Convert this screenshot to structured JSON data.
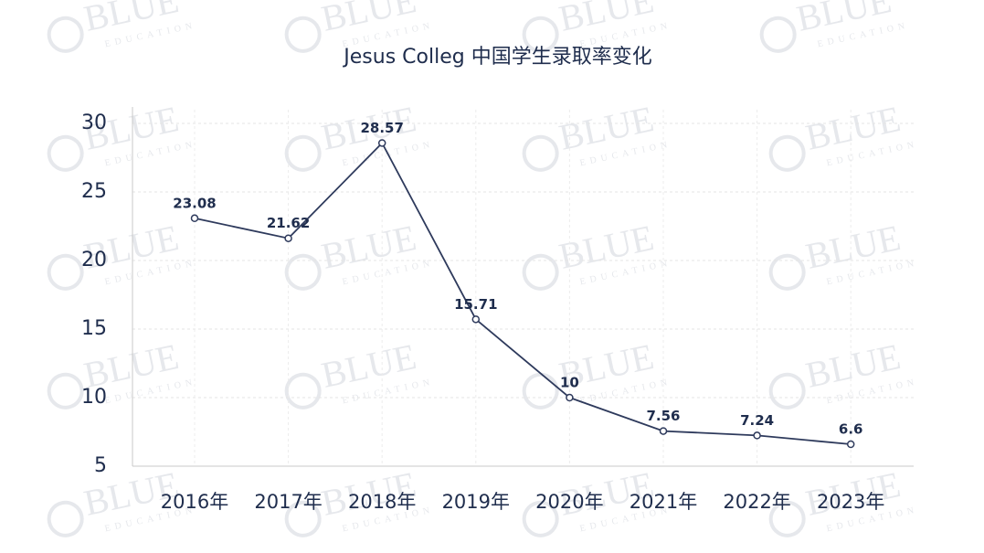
{
  "chart_data": {
    "type": "line",
    "title": "Jesus Colleg 中国学生录取率变化",
    "categories": [
      "2016年",
      "2017年",
      "2018年",
      "2019年",
      "2020年",
      "2021年",
      "2022年",
      "2023年"
    ],
    "values": [
      23.08,
      21.62,
      28.57,
      15.71,
      10,
      7.56,
      7.24,
      6.6
    ],
    "color": "#2e3a5c",
    "ylim": [
      5,
      30
    ],
    "yticks": [
      5,
      10,
      15,
      20,
      25,
      30
    ],
    "grid": true
  },
  "watermark": {
    "text": "BLUE",
    "subtext": "EDUCATION"
  }
}
